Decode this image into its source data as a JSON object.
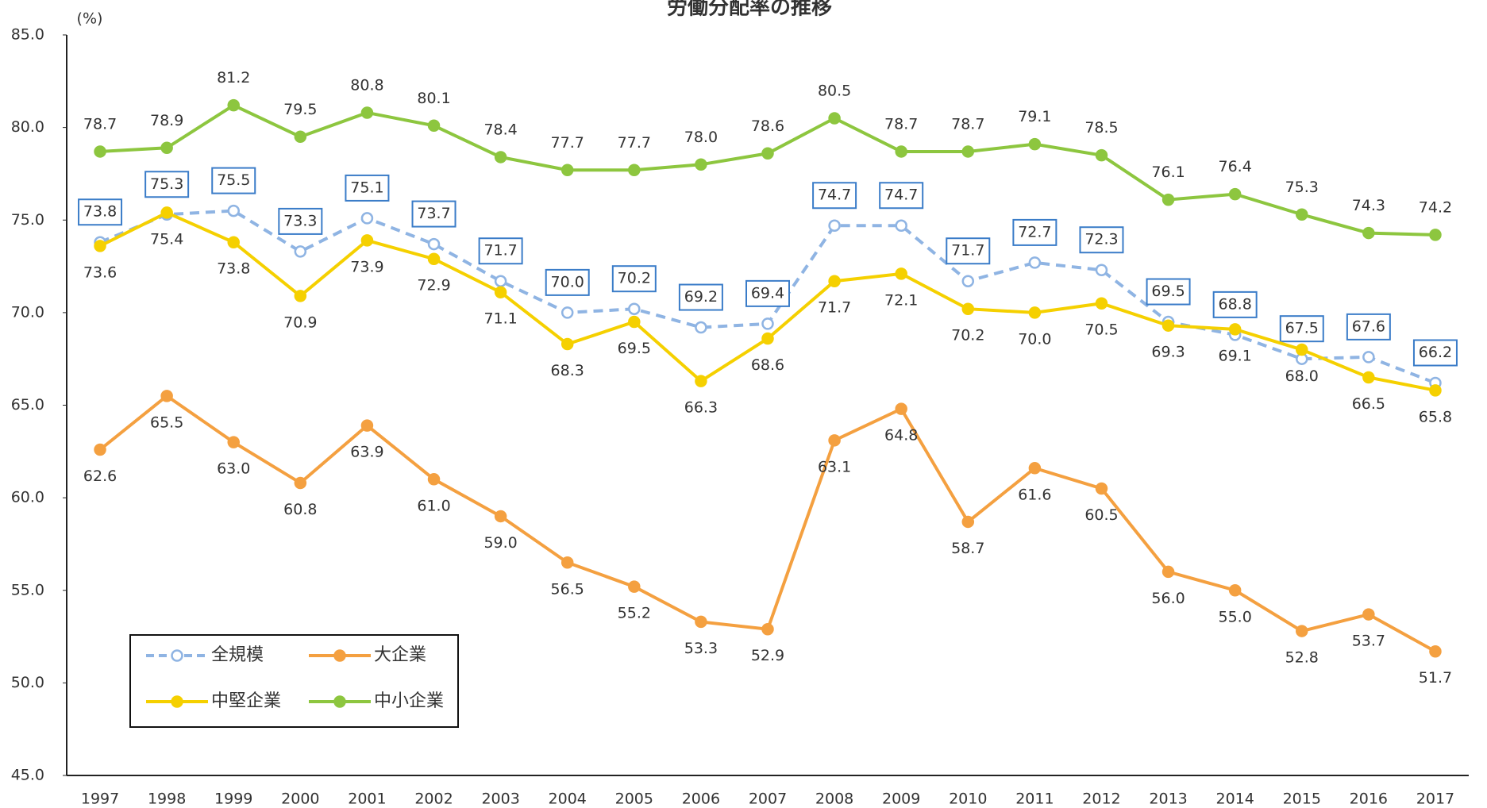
{
  "chart_data": {
    "type": "line",
    "title": "労働分配率の推移",
    "y_label": "(%)",
    "categories": [
      "1997",
      "1998",
      "1999",
      "2000",
      "2001",
      "2002",
      "2003",
      "2004",
      "2005",
      "2006",
      "2007",
      "2008",
      "2009",
      "2010",
      "2011",
      "2012",
      "2013",
      "2014",
      "2015",
      "2016",
      "2017"
    ],
    "ylim": [
      45,
      85
    ],
    "yticks": [
      {
        "value": 45,
        "label": "45.0"
      },
      {
        "value": 50,
        "label": "50.0"
      },
      {
        "value": 55,
        "label": "55.0"
      },
      {
        "value": 60,
        "label": "60.0"
      },
      {
        "value": 65,
        "label": "65.0"
      },
      {
        "value": 70,
        "label": "70.0"
      },
      {
        "value": 75,
        "label": "75.0"
      },
      {
        "value": 80,
        "label": "80.0"
      },
      {
        "value": 85,
        "label": "85.0"
      }
    ],
    "grid": false,
    "legend": "lower left",
    "series": [
      {
        "name": "全規模",
        "color": "#8fb4e3",
        "label_color": "#3a7cc8",
        "dashed": true,
        "hollow": true,
        "values": [
          73.8,
          75.3,
          75.5,
          73.3,
          75.1,
          73.7,
          71.7,
          70.0,
          70.2,
          69.2,
          69.4,
          74.7,
          74.7,
          71.7,
          72.7,
          72.3,
          69.5,
          68.8,
          67.5,
          67.6,
          66.2
        ],
        "value_labels": [
          "73.8",
          "75.3",
          "75.5",
          "73.3",
          "75.1",
          "73.7",
          "71.7",
          "70.0",
          "70.2",
          "69.2",
          "69.4",
          "74.7",
          "74.7",
          "71.7",
          "72.7",
          "72.3",
          "69.5",
          "68.8",
          "67.5",
          "67.6",
          "66.2"
        ]
      },
      {
        "name": "大企業",
        "color": "#f4a040",
        "label_color": "#e8461a",
        "dashed": false,
        "hollow": false,
        "values": [
          62.6,
          65.5,
          63.0,
          60.8,
          63.9,
          61.0,
          59.0,
          56.5,
          55.2,
          53.3,
          52.9,
          63.1,
          64.8,
          58.7,
          61.6,
          60.5,
          56.0,
          55.0,
          52.8,
          53.7,
          51.7
        ],
        "value_labels": [
          "62.6",
          "65.5",
          "63.0",
          "60.8",
          "63.9",
          "61.0",
          "59.0",
          "56.5",
          "55.2",
          "53.3",
          "52.9",
          "63.1",
          "64.8",
          "58.7",
          "61.6",
          "60.5",
          "56.0",
          "55.0",
          "52.8",
          "53.7",
          "51.7"
        ]
      },
      {
        "name": "中堅企業",
        "color": "#f5d000",
        "label_color": "#e8821a",
        "dashed": false,
        "hollow": false,
        "values": [
          73.6,
          75.4,
          73.8,
          70.9,
          73.9,
          72.9,
          71.1,
          68.3,
          69.5,
          66.3,
          68.6,
          71.7,
          72.1,
          70.2,
          70.0,
          70.5,
          69.3,
          69.1,
          68.0,
          66.5,
          65.8
        ],
        "value_labels": [
          "73.6",
          "75.4",
          "73.8",
          "70.9",
          "73.9",
          "72.9",
          "71.1",
          "68.3",
          "69.5",
          "66.3",
          "68.6",
          "71.7",
          "72.1",
          "70.2",
          "70.0",
          "70.5",
          "69.3",
          "69.1",
          "68.0",
          "66.5",
          "65.8"
        ]
      },
      {
        "name": "中小企業",
        "color": "#8dc63f",
        "label_color": "#6a8a1a",
        "dashed": false,
        "hollow": false,
        "values": [
          78.7,
          78.9,
          81.2,
          79.5,
          80.8,
          80.1,
          78.4,
          77.7,
          77.7,
          78.0,
          78.6,
          80.5,
          78.7,
          78.7,
          79.1,
          78.5,
          76.1,
          76.4,
          75.3,
          74.3,
          74.2
        ],
        "value_labels": [
          "78.7",
          "78.9",
          "81.2",
          "79.5",
          "80.8",
          "80.1",
          "78.4",
          "77.7",
          "77.7",
          "78.0",
          "78.6",
          "80.5",
          "78.7",
          "78.7",
          "79.1",
          "78.5",
          "76.1",
          "76.4",
          "75.3",
          "74.3",
          "74.2"
        ]
      }
    ]
  }
}
